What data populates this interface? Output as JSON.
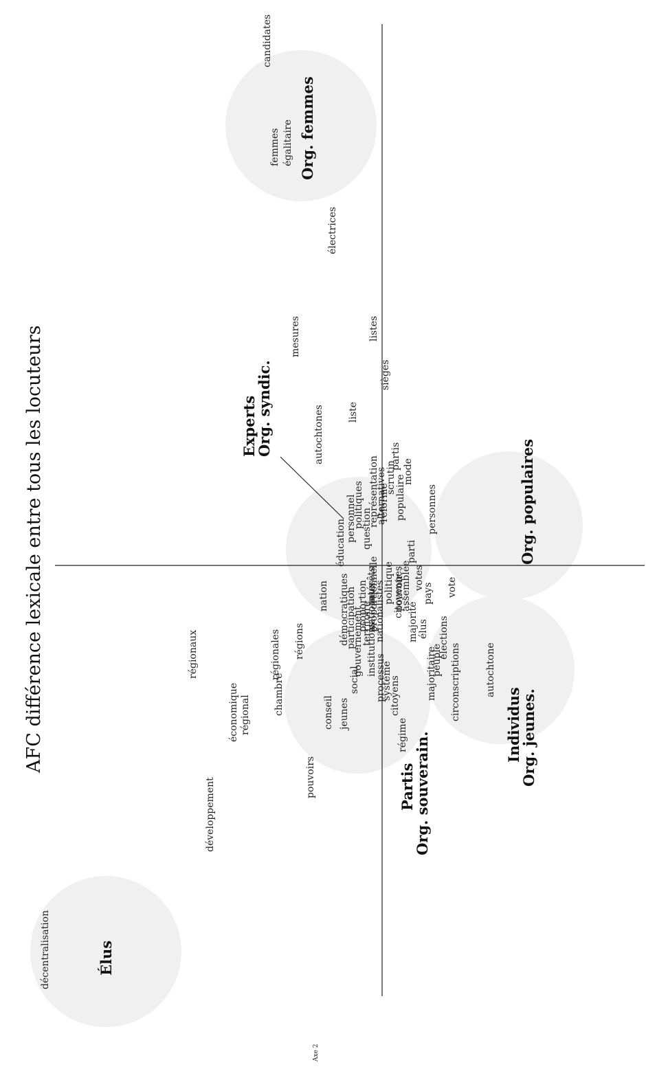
{
  "title": "AFC différence lexicale entre tous les locuteurs",
  "axis_label": "Axe 2",
  "colors": {
    "bubble": "#f0f0f0",
    "axis": "#222222",
    "text": "#222222"
  },
  "groups": [
    {
      "label": "Org. femmes"
    },
    {
      "label": "Experts"
    },
    {
      "label": "Org. syndic."
    },
    {
      "label": "Org. populaires"
    },
    {
      "label": "Individus"
    },
    {
      "label": "Org. jeunes."
    },
    {
      "label": "Partis"
    },
    {
      "label": "Org. souverain."
    },
    {
      "label": "Élus"
    }
  ],
  "words": [
    "candidates",
    "femmes",
    "égalitaire",
    "électrices",
    "listes",
    "mesures",
    "sièges",
    "liste",
    "autochtones",
    "personnes",
    "populaire",
    "mode",
    "partis",
    "représentation",
    "alternatives",
    "éducation",
    "politiques",
    "personnel",
    "nation",
    "démocratiques",
    "régions",
    "régionales",
    "chambre",
    "régionaux",
    "économique",
    "régional",
    "conseil",
    "jeunes",
    "pouvoirs",
    "développement",
    "décentralisation",
    "autochtone",
    "pays",
    "vote",
    "élections",
    "majoritaire",
    "peuple",
    "circonscriptions",
    "votes",
    "parti",
    "proportion",
    "institutions",
    "processus",
    "citoyens",
    "système",
    "régime",
    "nationaux",
    "nationalistes",
    "assemblée",
    "élus",
    "intérêts",
    "majorité",
    "citoyennes",
    "gouvernement",
    "participation",
    "social",
    "politique",
    "scrutin",
    "question",
    "réforme",
    "pouvoir",
    "territoire",
    "proportionnelle"
  ]
}
